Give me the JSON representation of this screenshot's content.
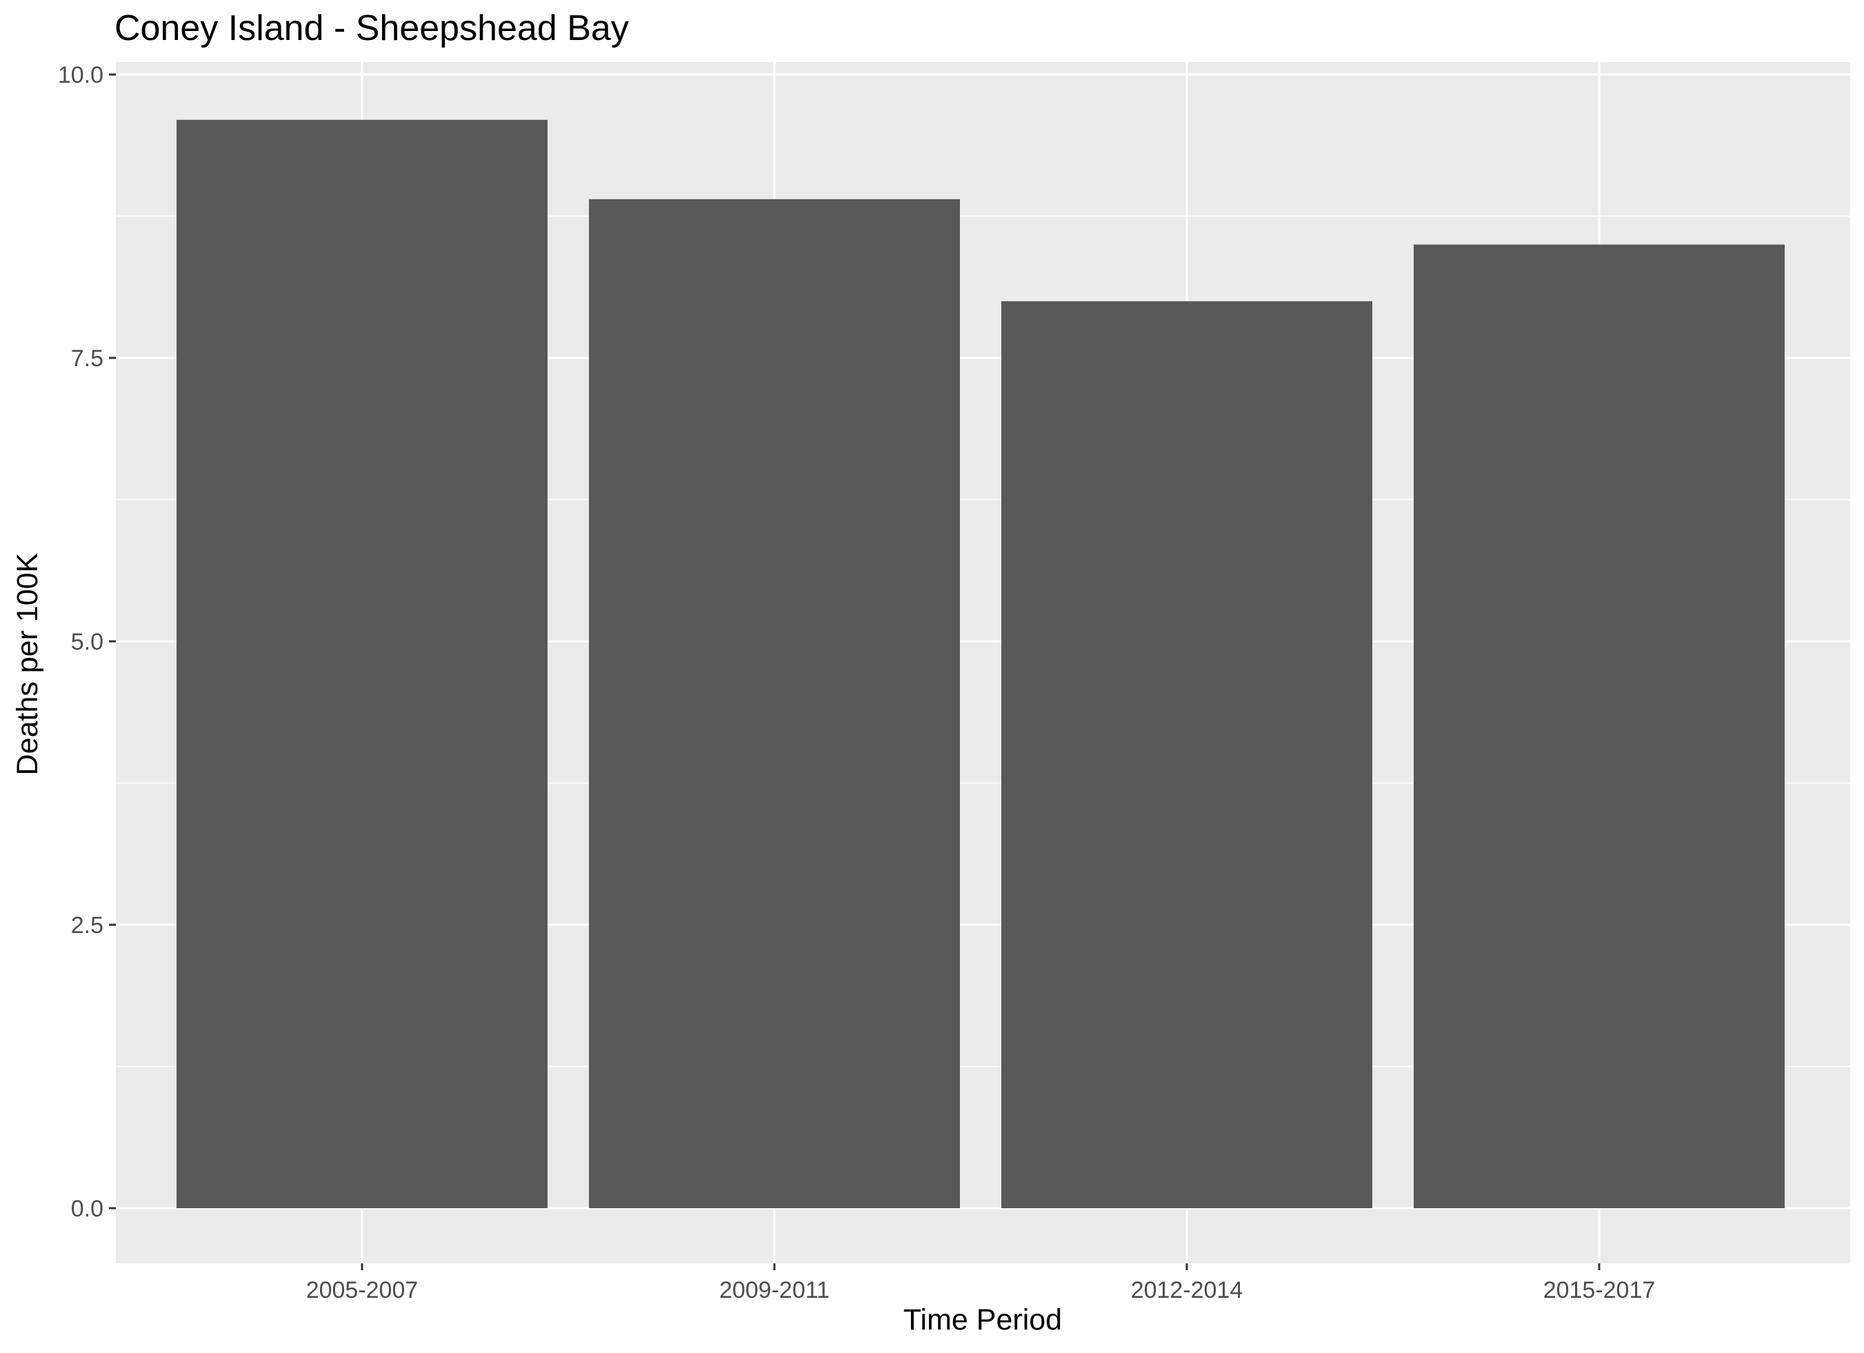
{
  "chart_data": {
    "type": "bar",
    "title": "Coney Island - Sheepshead Bay",
    "xlabel": "Time Period",
    "ylabel": "Deaths per 100K",
    "categories": [
      "2005-2007",
      "2009-2011",
      "2012-2014",
      "2015-2017"
    ],
    "values": [
      9.6,
      8.9,
      8.0,
      8.5
    ],
    "ylim": [
      0,
      10
    ],
    "yticks": [
      "0.0",
      "2.5",
      "5.0",
      "7.5",
      "10.0"
    ],
    "ytick_values": [
      0,
      2.5,
      5,
      7.5,
      10
    ],
    "grid": true,
    "legend": "none",
    "colors": {
      "bar": "#595959",
      "panel": "#ebebeb",
      "grid": "#ffffff"
    }
  }
}
